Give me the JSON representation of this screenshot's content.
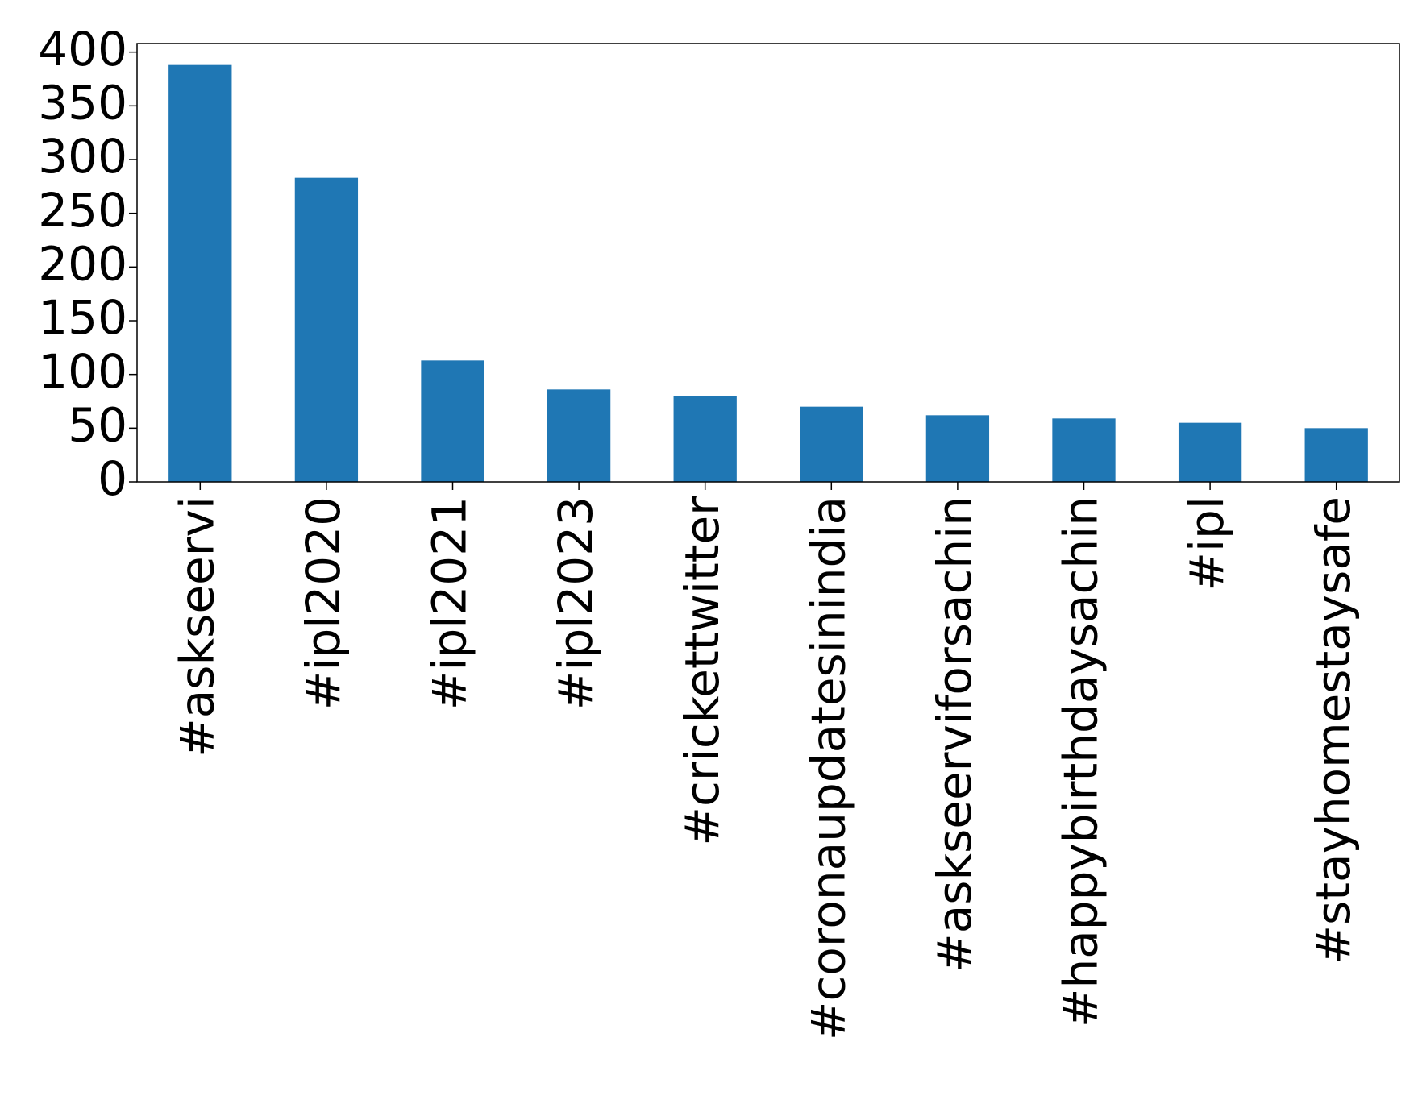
{
  "chart_data": {
    "type": "bar",
    "categories": [
      "#askseervi",
      "#ipl2020",
      "#ipl2021",
      "#ipl2023",
      "#crickettwitter",
      "#coronaupdatesinindia",
      "#askseerviforsachin",
      "#happybirthdaysachin",
      "#ipl",
      "#stayhomestaysafe"
    ],
    "values": [
      388,
      283,
      113,
      86,
      80,
      70,
      62,
      59,
      55,
      50
    ],
    "color": "#1f77b4",
    "ylim": [
      0,
      408
    ],
    "yticks": [
      0,
      50,
      100,
      150,
      200,
      250,
      300,
      350,
      400
    ],
    "grid": false
  }
}
